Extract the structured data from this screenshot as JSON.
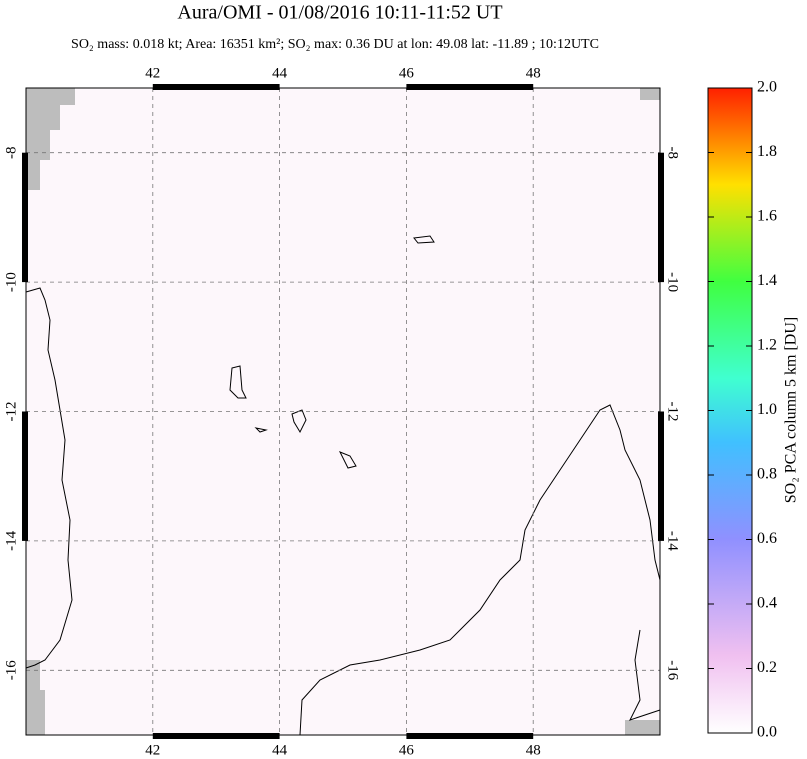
{
  "chart_data": {
    "type": "map",
    "title": "Aura/OMI - 01/08/2016 10:11-11:52 UT",
    "subtitle": "SO₂ mass: 0.018 kt; Area: 16351 km²; SO₂ max: 0.36 DU at lon: 49.08 lat: -11.89 ; 10:12UTC",
    "xlim": [
      40,
      50
    ],
    "ylim": [
      -17,
      -7
    ],
    "xticks": [
      42,
      44,
      46,
      48
    ],
    "yticks": [
      -8,
      -10,
      -12,
      -14,
      -16
    ],
    "grid": true,
    "colorbar": {
      "label": "SO₂ PCA column 5 km [DU]",
      "lim": [
        0,
        2
      ],
      "ticks": [
        {
          "value": 0,
          "label": "0.0"
        },
        0.2,
        0.4,
        0.6,
        0.8,
        {
          "value": 1,
          "label": "1.0"
        },
        1.2,
        1.4,
        1.6,
        1.8,
        {
          "value": 2,
          "label": "2.0"
        }
      ]
    }
  }
}
